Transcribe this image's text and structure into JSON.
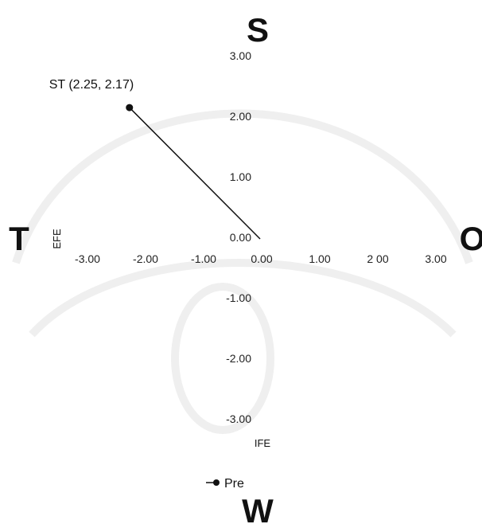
{
  "chart_data": {
    "type": "scatter",
    "xlabel": "EFE",
    "ylabel": "IFE",
    "xlim": [
      -3,
      3
    ],
    "ylim": [
      -3,
      3
    ],
    "x_ticks": [
      "-3.00",
      "-2.00",
      "-1.00",
      "0.00",
      "1.00",
      "2 00",
      "3.00"
    ],
    "y_ticks": [
      "3.00",
      "2.00",
      "1.00",
      "0.00",
      "-1.00",
      "-2.00",
      "-3.00"
    ],
    "quadrant_labels": {
      "top": "S",
      "left": "T",
      "right": "O",
      "bottom": "W"
    },
    "series": [
      {
        "name": "Pre",
        "points": [
          {
            "x": -2.25,
            "y": 2.17,
            "label": "ST (2.25, 2.17)"
          }
        ]
      }
    ],
    "line_from_origin": true,
    "legend": "bottom",
    "grid": false
  }
}
